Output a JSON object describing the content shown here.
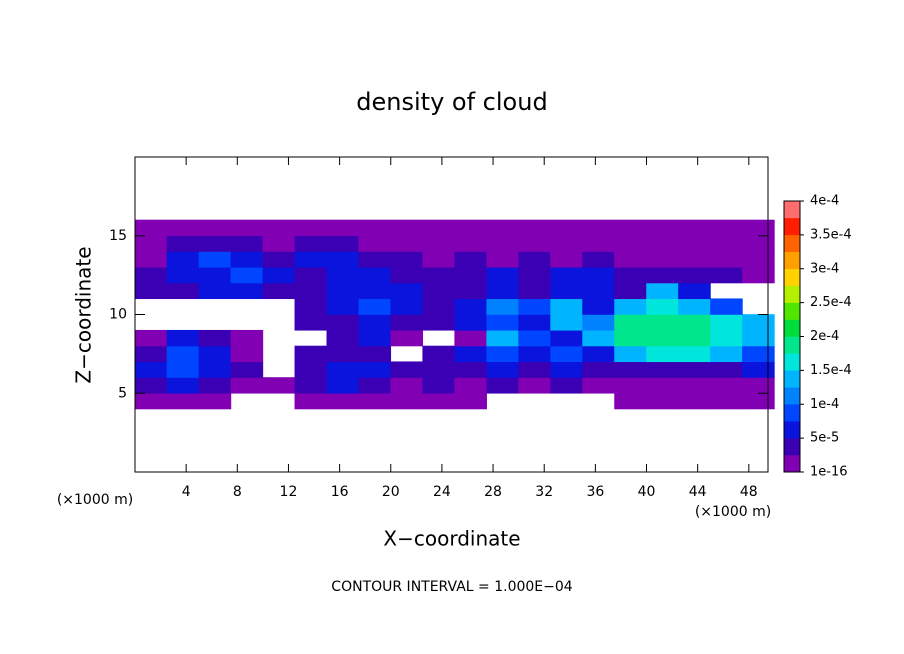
{
  "chart_data": {
    "type": "contour",
    "title": "density of cloud",
    "x_label": "X−coordinate",
    "y_label": "Z−coordinate",
    "x_unit": "(×1000 m)",
    "x_unit_right": "(×1000 m)",
    "annotation": "CONTOUR INTERVAL = 1.000E−04",
    "xlim": [
      0,
      49.5
    ],
    "ylim": [
      0,
      20
    ],
    "xticks": [
      4,
      8,
      12,
      16,
      20,
      24,
      28,
      32,
      36,
      40,
      44,
      48
    ],
    "yticks": [
      5,
      10,
      15
    ],
    "x": [
      1.25,
      3.75,
      6.25,
      8.75,
      11.25,
      13.75,
      16.25,
      18.75,
      21.25,
      23.75,
      26.25,
      28.75,
      31.25,
      33.75,
      36.25,
      38.75,
      41.25,
      43.75,
      46.25,
      48.75
    ],
    "y": [
      4.5,
      5.5,
      6.5,
      7.5,
      8.5,
      9.5,
      10.5,
      11.5,
      12.5,
      13.5,
      14.5,
      15.5
    ],
    "values": [
      [
        1e-05,
        1e-05,
        1e-05,
        null,
        null,
        1e-05,
        1e-05,
        1e-05,
        1e-05,
        1e-05,
        1e-05,
        null,
        null,
        null,
        null,
        1e-05,
        1e-05,
        1e-05,
        1e-05,
        1e-05
      ],
      [
        3e-05,
        6e-05,
        3e-05,
        1e-05,
        1e-05,
        3e-05,
        6e-05,
        3e-05,
        1e-05,
        3e-05,
        1e-05,
        3e-05,
        1e-05,
        3e-05,
        1e-05,
        1e-05,
        1e-05,
        1e-05,
        1e-05,
        1e-05
      ],
      [
        6e-05,
        9e-05,
        6e-05,
        3e-05,
        null,
        3e-05,
        6e-05,
        6e-05,
        3e-05,
        3e-05,
        3e-05,
        6e-05,
        3e-05,
        6e-05,
        3e-05,
        3e-05,
        3e-05,
        3e-05,
        3e-05,
        6e-05
      ],
      [
        3e-05,
        9e-05,
        6e-05,
        1e-05,
        null,
        3e-05,
        3e-05,
        3e-05,
        null,
        3e-05,
        6e-05,
        9e-05,
        6e-05,
        9e-05,
        6e-05,
        0.00014,
        0.00016,
        0.00016,
        0.00014,
        9e-05
      ],
      [
        1e-05,
        6e-05,
        3e-05,
        1e-05,
        null,
        null,
        3e-05,
        6e-05,
        1e-05,
        null,
        1e-05,
        0.00014,
        9e-05,
        6e-05,
        0.00014,
        0.00019,
        0.00019,
        0.00019,
        0.00016,
        0.00014
      ],
      [
        null,
        null,
        null,
        null,
        null,
        3e-05,
        3e-05,
        6e-05,
        3e-05,
        3e-05,
        6e-05,
        9e-05,
        6e-05,
        0.00014,
        0.00011,
        0.00019,
        0.00019,
        0.00019,
        0.00016,
        0.00014
      ],
      [
        null,
        null,
        null,
        null,
        null,
        3e-05,
        6e-05,
        9e-05,
        6e-05,
        3e-05,
        6e-05,
        0.00011,
        9e-05,
        0.00014,
        6e-05,
        0.00014,
        0.00016,
        0.00014,
        9e-05,
        null
      ],
      [
        3e-05,
        3e-05,
        6e-05,
        6e-05,
        3e-05,
        3e-05,
        6e-05,
        6e-05,
        6e-05,
        3e-05,
        3e-05,
        6e-05,
        3e-05,
        6e-05,
        6e-05,
        3e-05,
        0.00014,
        6e-05,
        null,
        null
      ],
      [
        3e-05,
        6e-05,
        6e-05,
        9e-05,
        6e-05,
        3e-05,
        6e-05,
        6e-05,
        3e-05,
        3e-05,
        3e-05,
        6e-05,
        3e-05,
        6e-05,
        6e-05,
        3e-05,
        3e-05,
        3e-05,
        3e-05,
        1e-05
      ],
      [
        1e-05,
        6e-05,
        9e-05,
        6e-05,
        3e-05,
        6e-05,
        6e-05,
        3e-05,
        3e-05,
        1e-05,
        3e-05,
        1e-05,
        3e-05,
        1e-05,
        3e-05,
        1e-05,
        1e-05,
        1e-05,
        1e-05,
        1e-05
      ],
      [
        1e-05,
        3e-05,
        3e-05,
        3e-05,
        1e-05,
        3e-05,
        3e-05,
        1e-05,
        1e-05,
        1e-05,
        1e-05,
        1e-05,
        1e-05,
        1e-05,
        1e-05,
        1e-05,
        1e-05,
        1e-05,
        1e-05,
        1e-05
      ],
      [
        1e-05,
        1e-05,
        1e-05,
        1e-05,
        1e-05,
        1e-05,
        1e-05,
        1e-05,
        1e-05,
        1e-05,
        1e-05,
        1e-05,
        1e-05,
        1e-05,
        1e-05,
        1e-05,
        1e-05,
        1e-05,
        1e-05,
        1e-05
      ]
    ],
    "levels": [
      1e-16,
      2.5e-05,
      5e-05,
      7.5e-05,
      0.0001,
      0.000125,
      0.00015,
      0.000175,
      0.0002,
      0.000225,
      0.00025,
      0.000275,
      0.0003,
      0.000325,
      0.00035,
      0.000375,
      0.0004
    ],
    "colors": [
      "#8200b4",
      "#3c00b4",
      "#0a14dc",
      "#0046ff",
      "#0082ff",
      "#00b4ff",
      "#00e6dc",
      "#00e68c",
      "#00dc3c",
      "#50e600",
      "#b4f000",
      "#ffd200",
      "#ffa000",
      "#ff6400",
      "#ff1e00",
      "#ff6e6e"
    ],
    "clim": [
      1e-16,
      0.0004
    ],
    "colorbar_ticks": [
      {
        "value": 1e-16,
        "label": "1e-16"
      },
      {
        "value": 5e-05,
        "label": "5e-5"
      },
      {
        "value": 0.0001,
        "label": "1e-4"
      },
      {
        "value": 0.00015,
        "label": "1.5e-4"
      },
      {
        "value": 0.0002,
        "label": "2e-4"
      },
      {
        "value": 0.00025,
        "label": "2.5e-4"
      },
      {
        "value": 0.0003,
        "label": "3e-4"
      },
      {
        "value": 0.00035,
        "label": "3.5e-4"
      },
      {
        "value": 0.0004,
        "label": "4e-4"
      }
    ]
  }
}
